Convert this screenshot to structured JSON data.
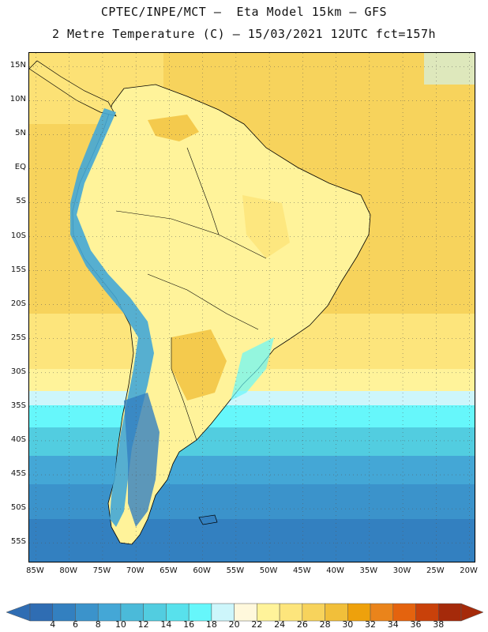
{
  "header": {
    "title_line1": "CPTEC/INPE/MCT –  Eta Model 15km – GFS",
    "title_line2": "2 Metre Temperature (C) – 15/03/2021 12UTC fct=157h"
  },
  "map": {
    "lon_range": [
      -86,
      -19
    ],
    "lat_range": [
      -58,
      17
    ],
    "lat_labels": [
      "15N",
      "10N",
      "5N",
      "EQ",
      "5S",
      "10S",
      "15S",
      "20S",
      "25S",
      "30S",
      "35S",
      "40S",
      "45S",
      "50S",
      "55S"
    ],
    "lat_values": [
      15,
      10,
      5,
      0,
      -5,
      -10,
      -15,
      -20,
      -25,
      -30,
      -35,
      -40,
      -45,
      -50,
      -55
    ],
    "lon_labels": [
      "85W",
      "80W",
      "75W",
      "70W",
      "65W",
      "60W",
      "55W",
      "50W",
      "45W",
      "40W",
      "35W",
      "30W",
      "25W",
      "20W"
    ],
    "lon_values": [
      -85,
      -80,
      -75,
      -70,
      -65,
      -60,
      -55,
      -50,
      -45,
      -40,
      -35,
      -30,
      -25,
      -20
    ],
    "grid": "dotted"
  },
  "colorbar": {
    "ticks": [
      "4",
      "6",
      "8",
      "10",
      "12",
      "14",
      "16",
      "18",
      "20",
      "22",
      "24",
      "26",
      "28",
      "30",
      "32",
      "34",
      "36",
      "38"
    ],
    "colors": [
      "#2f6db3",
      "#3380c0",
      "#3b93cb",
      "#44a7d6",
      "#4bbad9",
      "#52cde0",
      "#58e1ec",
      "#66f7fb",
      "#cdf6fb",
      "#fff8dc",
      "#fff39a",
      "#fde57c",
      "#f7d35c",
      "#f1bf3a",
      "#eea10c",
      "#ea841b",
      "#e4630e",
      "#c9410a",
      "#a52a0a"
    ],
    "low_color": "#2f6db3",
    "high_color": "#a52a0a"
  }
}
